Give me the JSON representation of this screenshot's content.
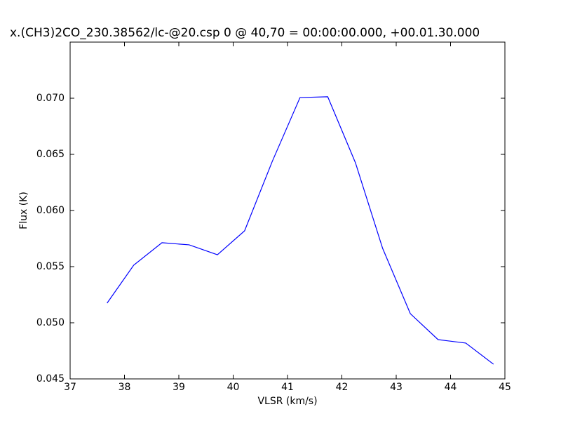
{
  "chart_data": {
    "type": "line",
    "title": "x.(CH3)2CO_230.38562/lc-@20.csp 0 @ 40,70 = 00:00:00.000, +00.01.30.000",
    "xlabel": "VLSR (km/s)",
    "ylabel": "Flux (K)",
    "x": [
      37.68,
      38.17,
      38.69,
      39.19,
      39.71,
      40.21,
      40.72,
      41.23,
      41.74,
      42.25,
      42.75,
      43.26,
      43.77,
      44.28,
      44.79
    ],
    "series": [
      {
        "color": "#0000ff",
        "values": [
          0.05175,
          0.05513,
          0.05713,
          0.05694,
          0.05606,
          0.05819,
          0.06438,
          0.07006,
          0.07013,
          0.06425,
          0.05663,
          0.05081,
          0.0485,
          0.04819,
          0.04631
        ]
      }
    ],
    "xlim": [
      37,
      45
    ],
    "xticks": [
      37,
      38,
      39,
      40,
      41,
      42,
      43,
      44,
      45
    ],
    "ylim": [
      0.045,
      0.075
    ],
    "yticks": [
      0.045,
      {
        "value": 0.05,
        "label": "0.050"
      },
      0.055,
      {
        "value": 0.06,
        "label": "0.060"
      },
      0.065,
      {
        "value": 0.07,
        "label": "0.070"
      }
    ],
    "grid": false
  }
}
